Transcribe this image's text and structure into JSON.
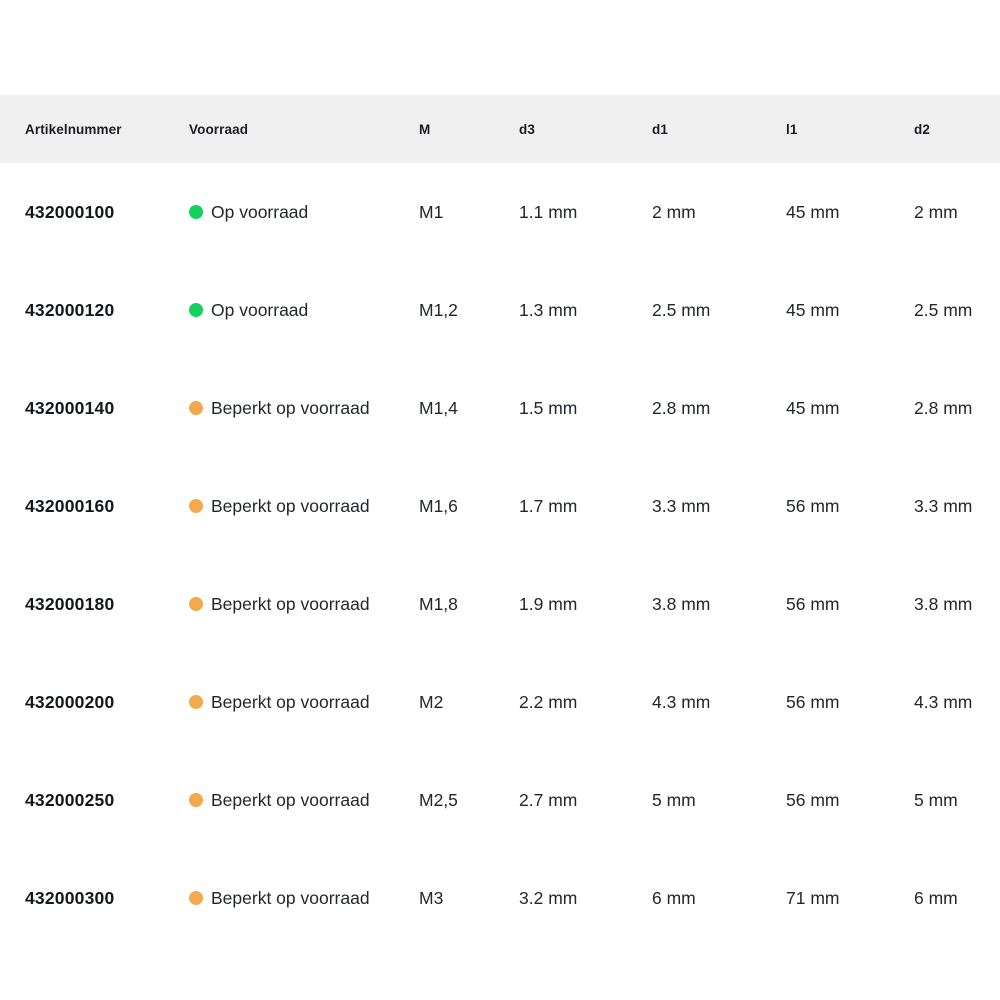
{
  "table": {
    "headers": [
      {
        "key": "artikelnummer",
        "label": "Artikelnummer"
      },
      {
        "key": "voorraad",
        "label": "Voorraad"
      },
      {
        "key": "m",
        "label": "M"
      },
      {
        "key": "d3",
        "label": "d3"
      },
      {
        "key": "d1",
        "label": "d1"
      },
      {
        "key": "l1",
        "label": "l1"
      },
      {
        "key": "d2",
        "label": "d2"
      }
    ],
    "status_colors": {
      "in_stock": "#13d15b",
      "limited": "#f5a94e"
    },
    "rows": [
      {
        "artikelnummer": "432000100",
        "status": "in_stock",
        "voorraad": "Op voorraad",
        "m": "M1",
        "d3": "1.1 mm",
        "d1": "2 mm",
        "l1": "45 mm",
        "d2": "2 mm"
      },
      {
        "artikelnummer": "432000120",
        "status": "in_stock",
        "voorraad": "Op voorraad",
        "m": "M1,2",
        "d3": "1.3 mm",
        "d1": "2.5 mm",
        "l1": "45 mm",
        "d2": "2.5 mm"
      },
      {
        "artikelnummer": "432000140",
        "status": "limited",
        "voorraad": "Beperkt op voorraad",
        "m": "M1,4",
        "d3": "1.5 mm",
        "d1": "2.8 mm",
        "l1": "45 mm",
        "d2": "2.8 mm"
      },
      {
        "artikelnummer": "432000160",
        "status": "limited",
        "voorraad": "Beperkt op voorraad",
        "m": "M1,6",
        "d3": "1.7 mm",
        "d1": "3.3 mm",
        "l1": "56 mm",
        "d2": "3.3 mm"
      },
      {
        "artikelnummer": "432000180",
        "status": "limited",
        "voorraad": "Beperkt op voorraad",
        "m": "M1,8",
        "d3": "1.9 mm",
        "d1": "3.8 mm",
        "l1": "56 mm",
        "d2": "3.8 mm"
      },
      {
        "artikelnummer": "432000200",
        "status": "limited",
        "voorraad": "Beperkt op voorraad",
        "m": "M2",
        "d3": "2.2 mm",
        "d1": "4.3 mm",
        "l1": "56 mm",
        "d2": "4.3 mm"
      },
      {
        "artikelnummer": "432000250",
        "status": "limited",
        "voorraad": "Beperkt op voorraad",
        "m": "M2,5",
        "d3": "2.7 mm",
        "d1": "5 mm",
        "l1": "56 mm",
        "d2": "5 mm"
      },
      {
        "artikelnummer": "432000300",
        "status": "limited",
        "voorraad": "Beperkt op voorraad",
        "m": "M3",
        "d3": "3.2 mm",
        "d1": "6 mm",
        "l1": "71 mm",
        "d2": "6 mm"
      }
    ]
  }
}
